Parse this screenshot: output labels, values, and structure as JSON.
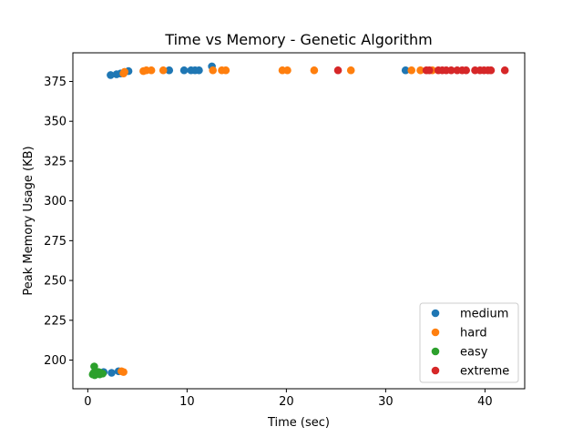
{
  "chart_data": {
    "type": "scatter",
    "title": "Time vs Memory - Genetic Algorithm",
    "xlabel": "Time (sec)",
    "ylabel": "Peak Memory Usage (KB)",
    "xlim": [
      -1.5,
      44.0
    ],
    "ylim": [
      182.0,
      393.0
    ],
    "x_ticks": [
      0,
      10,
      20,
      30,
      40
    ],
    "y_ticks": [
      200,
      225,
      250,
      275,
      300,
      325,
      350,
      375
    ],
    "grid": false,
    "legend_position": "lower right",
    "series": [
      {
        "name": "medium",
        "color": "#1f77b4",
        "points": [
          [
            2.3,
            379.0
          ],
          [
            2.9,
            379.5
          ],
          [
            3.3,
            380.0
          ],
          [
            4.1,
            381.5
          ],
          [
            8.2,
            382.0
          ],
          [
            9.7,
            382.0
          ],
          [
            10.4,
            382.0
          ],
          [
            10.8,
            382.0
          ],
          [
            11.2,
            382.0
          ],
          [
            12.5,
            384.5
          ],
          [
            32.0,
            382.0
          ],
          [
            1.6,
            192.5
          ],
          [
            2.4,
            192.0
          ],
          [
            3.1,
            193.0
          ]
        ]
      },
      {
        "name": "hard",
        "color": "#ff7f0e",
        "points": [
          [
            3.6,
            380.0
          ],
          [
            3.7,
            381.0
          ],
          [
            5.6,
            381.5
          ],
          [
            5.9,
            382.0
          ],
          [
            6.4,
            382.0
          ],
          [
            7.6,
            382.0
          ],
          [
            12.6,
            382.0
          ],
          [
            13.5,
            382.0
          ],
          [
            13.9,
            382.0
          ],
          [
            19.6,
            382.0
          ],
          [
            20.1,
            382.0
          ],
          [
            22.8,
            382.0
          ],
          [
            26.5,
            382.0
          ],
          [
            32.6,
            382.0
          ],
          [
            33.5,
            382.0
          ],
          [
            34.7,
            382.0
          ],
          [
            3.4,
            193.0
          ],
          [
            3.6,
            192.5
          ]
        ]
      },
      {
        "name": "easy",
        "color": "#2ca02c",
        "points": [
          [
            0.5,
            191.0
          ],
          [
            0.6,
            192.0
          ],
          [
            0.65,
            196.0
          ],
          [
            0.7,
            190.5
          ],
          [
            0.8,
            193.0
          ],
          [
            0.9,
            191.5
          ],
          [
            1.0,
            192.0
          ],
          [
            1.1,
            192.5
          ],
          [
            1.2,
            191.0
          ],
          [
            1.3,
            192.0
          ],
          [
            1.5,
            191.5
          ]
        ]
      },
      {
        "name": "extreme",
        "color": "#d62728",
        "points": [
          [
            25.2,
            382.0
          ],
          [
            34.1,
            382.0
          ],
          [
            34.4,
            382.0
          ],
          [
            35.3,
            382.0
          ],
          [
            35.7,
            382.0
          ],
          [
            36.1,
            382.0
          ],
          [
            36.6,
            382.0
          ],
          [
            37.2,
            382.0
          ],
          [
            37.7,
            382.0
          ],
          [
            38.1,
            382.0
          ],
          [
            39.0,
            382.0
          ],
          [
            39.5,
            382.0
          ],
          [
            39.9,
            382.0
          ],
          [
            40.3,
            382.0
          ],
          [
            40.6,
            382.0
          ],
          [
            42.0,
            382.0
          ]
        ]
      }
    ]
  }
}
